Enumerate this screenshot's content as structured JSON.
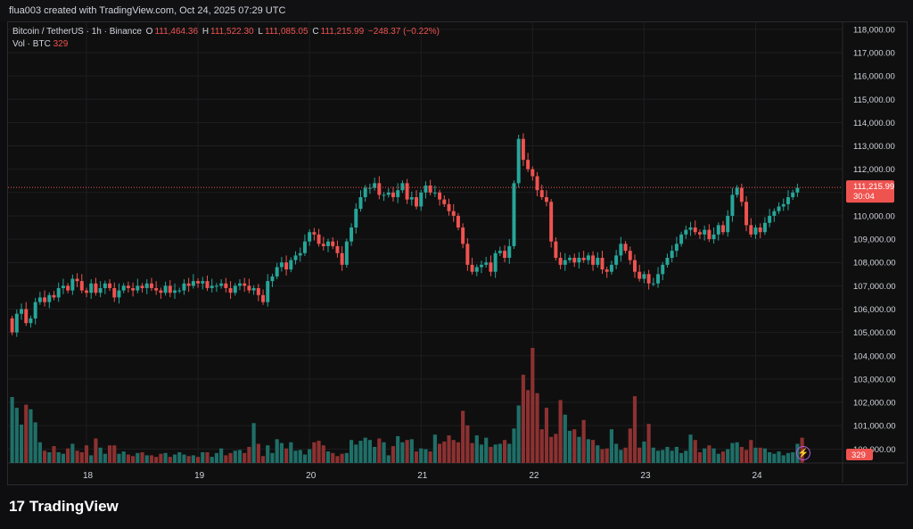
{
  "header": {
    "credit": "flua003 created with TradingView.com, Oct 24, 2025 07:29 UTC"
  },
  "legend": {
    "symbol": "Bitcoin / TetherUS · 1h · Binance",
    "o_label": "O",
    "o_value": "111,464.36",
    "h_label": "H",
    "h_value": "111,522.30",
    "l_label": "L",
    "l_value": "111,085.05",
    "c_label": "C",
    "c_value": "111,215.99",
    "change": "−248.37 (−0.22%)",
    "vol_label": "Vol · BTC",
    "vol_value": "329"
  },
  "price_tag": {
    "value": "111,215.99",
    "countdown": "30:04"
  },
  "vol_tag": "329",
  "brand": {
    "name": "TradingView"
  },
  "colors": {
    "up": "#26a69a",
    "down": "#ef5350",
    "vol_up": "#1f6f68",
    "vol_down": "#8c3131",
    "grid": "#1e1e22"
  },
  "chart_data": {
    "type": "candlestick",
    "y_ticks": [
      "100,000.00",
      "101,000.00",
      "102,000.00",
      "103,000.00",
      "104,000.00",
      "105,000.00",
      "106,000.00",
      "107,000.00",
      "108,000.00",
      "109,000.00",
      "110,000.00",
      "111,000.00",
      "112,000.00",
      "113,000.00",
      "114,000.00",
      "115,000.00",
      "116,000.00",
      "117,000.00",
      "118,000.00"
    ],
    "y_tick_values": [
      100000,
      101000,
      102000,
      103000,
      104000,
      105000,
      106000,
      107000,
      108000,
      109000,
      110000,
      111000,
      112000,
      113000,
      114000,
      115000,
      116000,
      117000,
      118000
    ],
    "ylim": [
      99400,
      118300
    ],
    "x_ticks": [
      "18",
      "19",
      "20",
      "21",
      "22",
      "23",
      "24"
    ],
    "candles_per_day": 24,
    "first_tick_index": 16,
    "last_close": 111215.99,
    "closes": [
      105000,
      105800,
      106000,
      105400,
      105600,
      106300,
      106500,
      106300,
      106600,
      106500,
      106900,
      107000,
      106800,
      107300,
      107200,
      106800,
      106700,
      107100,
      106700,
      106900,
      107100,
      106900,
      106500,
      106800,
      107000,
      106900,
      106800,
      107000,
      106900,
      107100,
      106900,
      106800,
      106700,
      107000,
      106700,
      106800,
      106800,
      107100,
      107000,
      107200,
      107100,
      107200,
      106900,
      107000,
      107000,
      107100,
      106900,
      106700,
      107000,
      107100,
      107000,
      106800,
      106900,
      106600,
      106300,
      107200,
      107400,
      107800,
      108000,
      107700,
      108100,
      108300,
      108400,
      108900,
      109300,
      109200,
      108800,
      108700,
      108900,
      108700,
      108400,
      107900,
      108900,
      109500,
      110300,
      110800,
      111200,
      111200,
      111400,
      110900,
      110900,
      111000,
      110800,
      111100,
      111400,
      110700,
      110800,
      110400,
      111000,
      111300,
      111000,
      111000,
      110700,
      110500,
      110200,
      110000,
      109500,
      108800,
      107900,
      107600,
      107800,
      107900,
      108000,
      107600,
      108400,
      108500,
      108200,
      108700,
      111400,
      113300,
      112400,
      112000,
      111700,
      111100,
      110800,
      110600,
      108900,
      108200,
      107900,
      108100,
      108200,
      108000,
      108200,
      108100,
      108300,
      107900,
      108200,
      107700,
      107600,
      107900,
      108300,
      108800,
      108500,
      108100,
      107600,
      107300,
      107500,
      107100,
      107100,
      107500,
      107900,
      108200,
      108500,
      108800,
      109200,
      109400,
      109500,
      109300,
      109200,
      109400,
      109000,
      109200,
      109600,
      109300,
      110000,
      110900,
      111200,
      110600,
      109600,
      109200,
      109500,
      109300,
      109700,
      110000,
      110200,
      110400,
      110500,
      110800,
      111000,
      111200
    ],
    "volumes": [
      0.86,
      0.72,
      0.5,
      0.76,
      0.7,
      0.53,
      0.27,
      0.16,
      0.14,
      0.22,
      0.14,
      0.12,
      0.19,
      0.25,
      0.16,
      0.14,
      0.23,
      0.1,
      0.32,
      0.2,
      0.12,
      0.23,
      0.23,
      0.12,
      0.15,
      0.11,
      0.09,
      0.13,
      0.14,
      0.1,
      0.1,
      0.08,
      0.12,
      0.13,
      0.08,
      0.11,
      0.14,
      0.11,
      0.09,
      0.1,
      0.08,
      0.14,
      0.14,
      0.08,
      0.13,
      0.19,
      0.1,
      0.13,
      0.16,
      0.17,
      0.13,
      0.21,
      0.52,
      0.25,
      0.09,
      0.23,
      0.13,
      0.31,
      0.26,
      0.19,
      0.27,
      0.16,
      0.17,
      0.11,
      0.18,
      0.27,
      0.29,
      0.23,
      0.15,
      0.13,
      0.09,
      0.12,
      0.13,
      0.3,
      0.24,
      0.29,
      0.33,
      0.3,
      0.21,
      0.32,
      0.27,
      0.1,
      0.22,
      0.35,
      0.27,
      0.3,
      0.31,
      0.15,
      0.19,
      0.18,
      0.15,
      0.37,
      0.25,
      0.28,
      0.36,
      0.3,
      0.27,
      0.68,
      0.49,
      0.26,
      0.36,
      0.24,
      0.33,
      0.21,
      0.24,
      0.25,
      0.3,
      0.25,
      0.45,
      0.75,
      1.15,
      0.95,
      1.5,
      0.91,
      0.44,
      0.72,
      0.34,
      0.38,
      0.82,
      0.63,
      0.42,
      0.44,
      0.34,
      0.56,
      0.31,
      0.3,
      0.23,
      0.18,
      0.19,
      0.44,
      0.25,
      0.17,
      0.2,
      0.45,
      0.87,
      0.2,
      0.28,
      0.51,
      0.2,
      0.16,
      0.17,
      0.21,
      0.16,
      0.21,
      0.13,
      0.16,
      0.37,
      0.3,
      0.14,
      0.19,
      0.23,
      0.19,
      0.12,
      0.15,
      0.18,
      0.26,
      0.27,
      0.21,
      0.17,
      0.3,
      0.2,
      0.2,
      0.19,
      0.14,
      0.12,
      0.15,
      0.1,
      0.13,
      0.14,
      0.25,
      0.33
    ]
  }
}
